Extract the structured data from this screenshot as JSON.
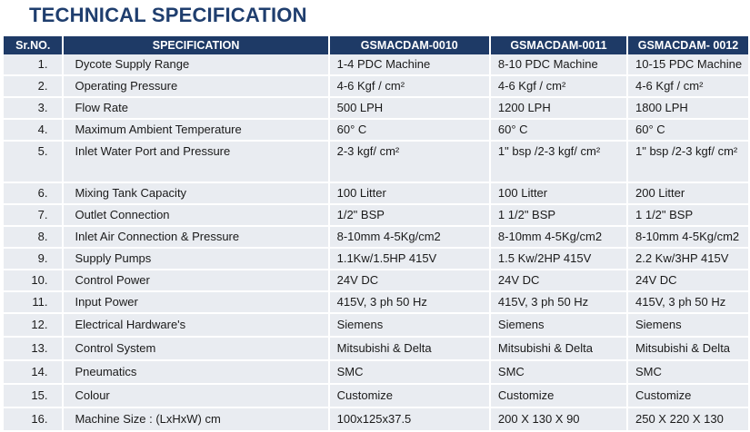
{
  "title": "TECHNICAL SPECIFICATION",
  "columns": [
    "Sr.NO.",
    "SPECIFICATION",
    "GSMACDAM-0010",
    "GSMACDAM-0011",
    "GSMACDAM- 0012"
  ],
  "rows": [
    {
      "sr": "1.",
      "spec": "Dycote Supply Range",
      "a": "1-4 PDC Machine",
      "b": "8-10 PDC Machine",
      "c": "10-15 PDC Machine"
    },
    {
      "sr": "2.",
      "spec": "Operating Pressure",
      "a": "4-6 Kgf / cm²",
      "b": "4-6 Kgf / cm²",
      "c": "4-6 Kgf / cm²"
    },
    {
      "sr": "3.",
      "spec": "Flow Rate",
      "a": "500 LPH",
      "b": "1200 LPH",
      "c": "1800 LPH"
    },
    {
      "sr": "4.",
      "spec": "Maximum Ambient Temperature",
      "a": "60° C",
      "b": "60° C",
      "c": "60° C"
    },
    {
      "sr": "5.",
      "spec": "Inlet Water Port and Pressure",
      "a": "2-3 kgf/ cm²",
      "b": "1\" bsp /2-3 kgf/ cm²",
      "c": "1\" bsp /2-3 kgf/ cm²"
    },
    {
      "sr": "6.",
      "spec": "Mixing Tank Capacity",
      "a": "100 Litter",
      "b": "100 Litter",
      "c": "200 Litter"
    },
    {
      "sr": "7.",
      "spec": "Outlet Connection",
      "a": "1/2\" BSP",
      "b": "1 1/2\" BSP",
      "c": "1 1/2\" BSP"
    },
    {
      "sr": "8.",
      "spec": "Inlet Air Connection & Pressure",
      "a": "8-10mm 4-5Kg/cm2",
      "b": "8-10mm 4-5Kg/cm2",
      "c": "8-10mm 4-5Kg/cm2"
    },
    {
      "sr": "9.",
      "spec": "Supply Pumps",
      "a": "1.1Kw/1.5HP 415V",
      "b": "1.5 Kw/2HP 415V",
      "c": "2.2 Kw/3HP 415V"
    },
    {
      "sr": "10.",
      "spec": "Control Power",
      "a": "24V DC",
      "b": "24V DC",
      "c": "24V DC"
    },
    {
      "sr": "11.",
      "spec": "Input Power",
      "a": "415V, 3 ph 50 Hz",
      "b": "415V, 3 ph 50 Hz",
      "c": "415V, 3 ph 50 Hz"
    },
    {
      "sr": "12.",
      "spec": "Electrical Hardware's",
      "a": "Siemens",
      "b": "Siemens",
      "c": "Siemens"
    },
    {
      "sr": "13.",
      "spec": "Control System",
      "a": "Mitsubishi & Delta",
      "b": "Mitsubishi & Delta",
      "c": "Mitsubishi & Delta"
    },
    {
      "sr": "14.",
      "spec": "Pneumatics",
      "a": "SMC",
      "b": "SMC",
      "c": "SMC"
    },
    {
      "sr": "15.",
      "spec": "Colour",
      "a": "Customize",
      "b": "Customize",
      "c": "Customize"
    },
    {
      "sr": "16.",
      "spec": "Machine Size : (LxHxW) cm",
      "a": "100x125x37.5",
      "b": "200 X 130 X 90",
      "c": "250 X 220 X 130"
    }
  ],
  "colors": {
    "title": "#1f3e6e",
    "header_bg": "#1e3a66",
    "row_bg": "#e9ecf1"
  }
}
